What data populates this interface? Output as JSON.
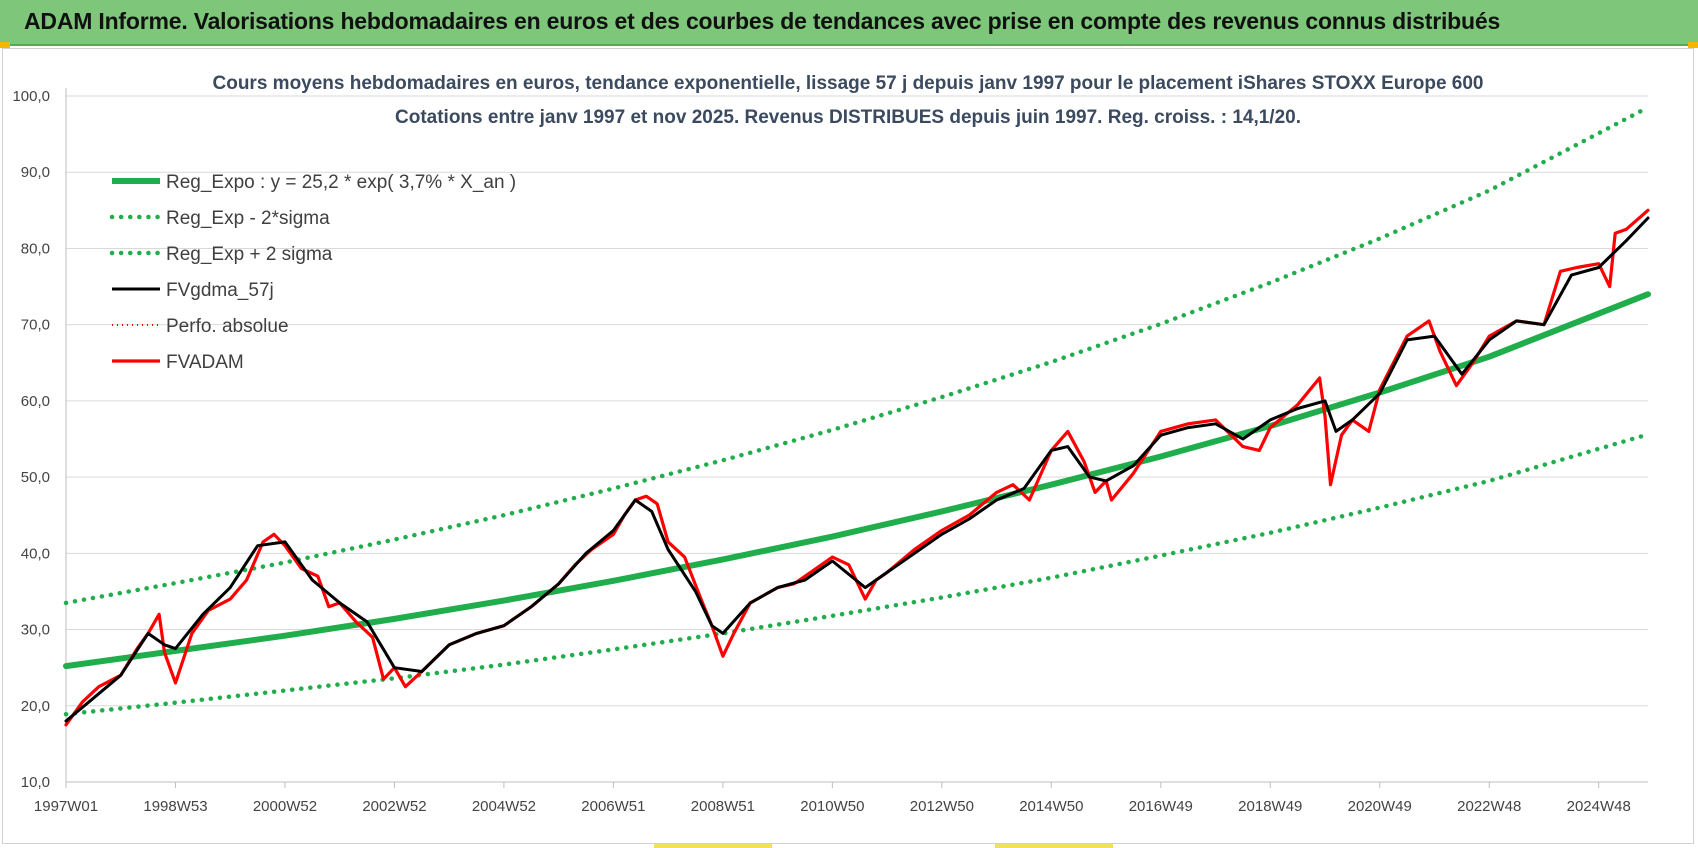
{
  "banner": {
    "title": "ADAM Informe. Valorisations hebdomadaires en euros et des courbes de tendances avec prise en compte des revenus connus distribués"
  },
  "colors": {
    "banner_bg": "#7dc67a",
    "trend": "#1fae4b",
    "price": "#ff0000",
    "smooth": "#000000",
    "grid": "#d9d9d9"
  },
  "chart_data": {
    "type": "line",
    "title": "Cours moyens hebdomadaires en euros, tendance exponentielle, lissage 57 j depuis janv 1997 pour le placement iShares STOXX Europe 600",
    "subtitle": "Cotations entre janv 1997 et nov 2025. Revenus DISTRIBUES depuis juin 1997. Reg. croiss. : 14,1/20.",
    "ylim": [
      10,
      100
    ],
    "yticks": [
      "100,0",
      "90,0",
      "80,0",
      "70,0",
      "60,0",
      "50,0",
      "40,0",
      "30,0",
      "20,0",
      "10,0"
    ],
    "xlim": [
      1997.0,
      2025.9
    ],
    "xticks": [
      {
        "x": 1997.0,
        "label": "1997W01"
      },
      {
        "x": 1999.0,
        "label": "1998W53"
      },
      {
        "x": 2001.0,
        "label": "2000W52"
      },
      {
        "x": 2003.0,
        "label": "2002W52"
      },
      {
        "x": 2005.0,
        "label": "2004W52"
      },
      {
        "x": 2007.0,
        "label": "2006W51"
      },
      {
        "x": 2009.0,
        "label": "2008W51"
      },
      {
        "x": 2011.0,
        "label": "2010W50"
      },
      {
        "x": 2013.0,
        "label": "2012W50"
      },
      {
        "x": 2015.0,
        "label": "2014W50"
      },
      {
        "x": 2017.0,
        "label": "2016W49"
      },
      {
        "x": 2019.0,
        "label": "2018W49"
      },
      {
        "x": 2021.0,
        "label": "2020W49"
      },
      {
        "x": 2023.0,
        "label": "2022W48"
      },
      {
        "x": 2025.0,
        "label": "2024W48"
      }
    ],
    "grid": true,
    "legend_position": "top-left",
    "series": [
      {
        "name": "Reg_Expo : y = 25,2 * exp( 3,7% *  X_an )",
        "style": "solid-thick",
        "x": [
          1997.0,
          1999.0,
          2001.0,
          2003.0,
          2005.0,
          2007.0,
          2009.0,
          2011.0,
          2013.0,
          2015.0,
          2017.0,
          2019.0,
          2021.0,
          2023.0,
          2025.9
        ],
        "y": [
          25.2,
          27.2,
          29.2,
          31.4,
          33.8,
          36.4,
          39.2,
          42.2,
          45.5,
          49.0,
          52.7,
          56.7,
          61.1,
          65.8,
          74.0
        ]
      },
      {
        "name": "Reg_Exp - 2*sigma",
        "style": "dotted",
        "x": [
          1997.0,
          1999.0,
          2001.0,
          2003.0,
          2005.0,
          2007.0,
          2009.0,
          2011.0,
          2013.0,
          2015.0,
          2017.0,
          2019.0,
          2021.0,
          2023.0,
          2025.9
        ],
        "y": [
          18.9,
          20.4,
          22.0,
          23.6,
          25.4,
          27.4,
          29.5,
          31.8,
          34.2,
          36.8,
          39.7,
          42.7,
          46.0,
          49.5,
          55.6
        ]
      },
      {
        "name": "Reg_Exp + 2 sigma",
        "style": "dotted",
        "x": [
          1997.0,
          1999.0,
          2001.0,
          2003.0,
          2005.0,
          2007.0,
          2009.0,
          2011.0,
          2013.0,
          2015.0,
          2017.0,
          2019.0,
          2021.0,
          2023.0,
          2025.9
        ],
        "y": [
          33.5,
          36.1,
          38.8,
          41.8,
          45.0,
          48.5,
          52.2,
          56.2,
          60.5,
          65.1,
          70.1,
          75.5,
          81.3,
          87.6,
          98.5
        ]
      },
      {
        "name": "FVgdma_57j",
        "style": "solid",
        "x": [
          1997.0,
          1997.5,
          1998.0,
          1998.5,
          1998.8,
          1999.0,
          1999.5,
          2000.0,
          2000.5,
          2001.0,
          2001.5,
          2002.0,
          2002.5,
          2003.0,
          2003.5,
          2004.0,
          2004.5,
          2005.0,
          2005.5,
          2006.0,
          2006.5,
          2007.0,
          2007.4,
          2007.7,
          2008.0,
          2008.5,
          2008.8,
          2009.0,
          2009.5,
          2010.0,
          2010.5,
          2011.0,
          2011.6,
          2012.0,
          2012.5,
          2013.0,
          2013.5,
          2014.0,
          2014.5,
          2015.0,
          2015.3,
          2015.7,
          2016.0,
          2016.5,
          2017.0,
          2017.5,
          2018.0,
          2018.5,
          2019.0,
          2019.5,
          2020.0,
          2020.2,
          2020.5,
          2021.0,
          2021.5,
          2022.0,
          2022.5,
          2023.0,
          2023.5,
          2024.0,
          2024.5,
          2025.0,
          2025.5,
          2025.9
        ],
        "y": [
          18.0,
          21.0,
          24.0,
          29.5,
          28.0,
          27.5,
          32.0,
          35.5,
          41.0,
          41.5,
          36.5,
          33.5,
          31.0,
          25.0,
          24.5,
          28.0,
          29.5,
          30.5,
          33.0,
          36.0,
          40.0,
          43.0,
          47.0,
          45.5,
          40.5,
          35.0,
          30.5,
          29.5,
          33.5,
          35.5,
          36.5,
          39.0,
          35.5,
          37.5,
          40.0,
          42.5,
          44.5,
          47.0,
          48.5,
          53.5,
          54.0,
          50.0,
          49.5,
          51.5,
          55.5,
          56.5,
          57.0,
          55.0,
          57.5,
          59.0,
          60.0,
          56.0,
          57.5,
          61.0,
          68.0,
          68.5,
          63.5,
          68.0,
          70.5,
          70.0,
          76.5,
          77.5,
          81.0,
          84.0
        ]
      },
      {
        "name": "Perfo. absolue",
        "style": "dotted-red",
        "x": [],
        "y": []
      },
      {
        "name": "FVADAM",
        "style": "solid-thick-red",
        "x": [
          1997.0,
          1997.3,
          1997.6,
          1998.0,
          1998.3,
          1998.5,
          1998.7,
          1998.8,
          1999.0,
          1999.3,
          1999.6,
          2000.0,
          2000.3,
          2000.6,
          2000.8,
          2001.0,
          2001.3,
          2001.6,
          2001.8,
          2002.0,
          2002.3,
          2002.6,
          2002.8,
          2003.0,
          2003.2,
          2003.5,
          2004.0,
          2004.5,
          2005.0,
          2005.5,
          2006.0,
          2006.3,
          2006.6,
          2007.0,
          2007.2,
          2007.4,
          2007.6,
          2007.8,
          2008.0,
          2008.3,
          2008.6,
          2008.8,
          2009.0,
          2009.2,
          2009.5,
          2010.0,
          2010.3,
          2010.6,
          2011.0,
          2011.3,
          2011.6,
          2011.8,
          2012.0,
          2012.5,
          2013.0,
          2013.5,
          2014.0,
          2014.3,
          2014.6,
          2015.0,
          2015.3,
          2015.6,
          2015.8,
          2016.0,
          2016.1,
          2016.5,
          2017.0,
          2017.5,
          2018.0,
          2018.5,
          2018.8,
          2019.0,
          2019.5,
          2019.9,
          2020.0,
          2020.1,
          2020.3,
          2020.5,
          2020.8,
          2021.0,
          2021.5,
          2021.9,
          2022.1,
          2022.4,
          2022.7,
          2023.0,
          2023.5,
          2024.0,
          2024.3,
          2024.6,
          2025.0,
          2025.2,
          2025.3,
          2025.5,
          2025.9
        ],
        "y": [
          17.5,
          20.5,
          22.5,
          24.0,
          27.5,
          29.5,
          32.0,
          27.0,
          23.0,
          29.5,
          32.5,
          34.0,
          36.5,
          41.5,
          42.5,
          41.0,
          38.0,
          37.0,
          33.0,
          33.5,
          31.0,
          29.0,
          23.5,
          25.0,
          22.5,
          24.5,
          28.0,
          29.5,
          30.5,
          33.0,
          36.0,
          38.5,
          40.5,
          42.5,
          45.0,
          47.0,
          47.5,
          46.5,
          41.5,
          39.5,
          34.0,
          30.5,
          26.5,
          29.5,
          33.5,
          35.5,
          36.0,
          37.5,
          39.5,
          38.5,
          34.0,
          36.5,
          37.5,
          40.5,
          43.0,
          45.0,
          48.0,
          49.0,
          47.0,
          53.5,
          56.0,
          52.0,
          48.0,
          49.5,
          47.0,
          50.5,
          56.0,
          57.0,
          57.5,
          54.0,
          53.5,
          56.5,
          59.5,
          63.0,
          58.0,
          49.0,
          55.5,
          57.5,
          56.0,
          61.5,
          68.5,
          70.5,
          66.5,
          62.0,
          65.0,
          68.5,
          70.5,
          70.0,
          77.0,
          77.5,
          78.0,
          75.0,
          82.0,
          82.5,
          85.0
        ]
      }
    ]
  }
}
